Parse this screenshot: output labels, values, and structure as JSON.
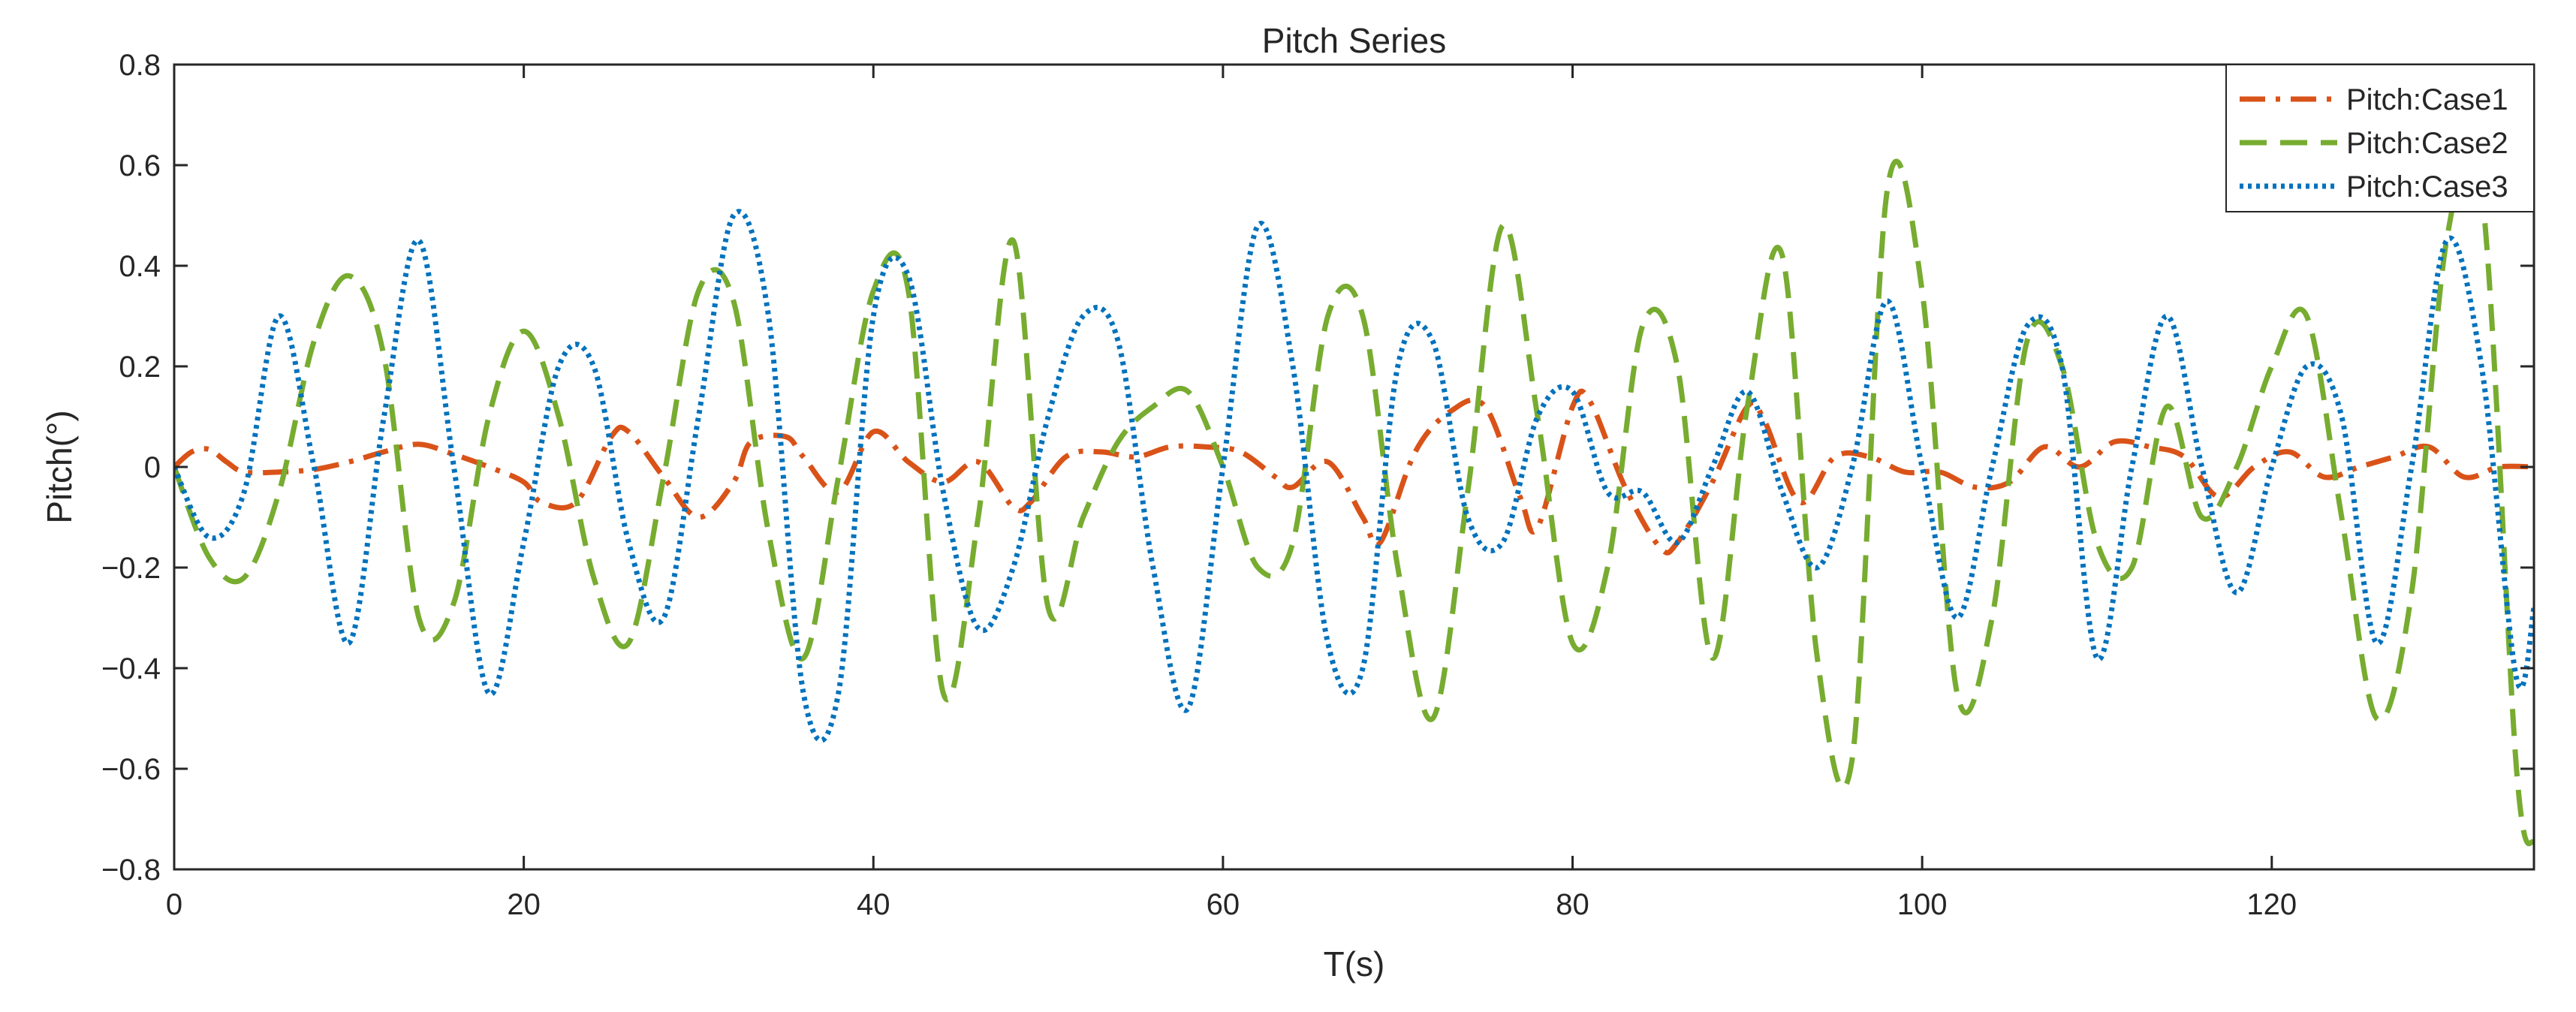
{
  "chart_data": {
    "type": "line",
    "title": "Pitch Series",
    "xlabel": "T(s)",
    "ylabel": "Pitch(°)",
    "xlim": [
      0,
      135
    ],
    "ylim": [
      -0.8,
      0.8
    ],
    "xticks": [
      0,
      20,
      40,
      60,
      80,
      100,
      120
    ],
    "yticks": [
      -0.8,
      -0.6,
      -0.4,
      -0.2,
      0,
      0.2,
      0.4,
      0.6,
      0.8
    ],
    "grid": false,
    "legend_position": "top-right",
    "series": [
      {
        "name": "Pitch:Case1",
        "color": "#D95319",
        "style": "dash-dot",
        "x": [
          0,
          1,
          2,
          3,
          4,
          6,
          8,
          10,
          12,
          14,
          16,
          18,
          20,
          21,
          23,
          25,
          26,
          28,
          30,
          32,
          33,
          35,
          36,
          38,
          40,
          42,
          44,
          46,
          48,
          49,
          51,
          53,
          55,
          57,
          59,
          61,
          63,
          64,
          66,
          68,
          69,
          71,
          73,
          75,
          77,
          78,
          80,
          81,
          83,
          85,
          86,
          88,
          90,
          91,
          93,
          95,
          97,
          99,
          101,
          103,
          105,
          107,
          109,
          111,
          113,
          115,
          117,
          119,
          121,
          123,
          125,
          127,
          129,
          131,
          133,
          135
        ],
        "y": [
          0.0,
          0.03,
          0.035,
          0.01,
          -0.01,
          -0.01,
          -0.005,
          0.01,
          0.03,
          0.045,
          0.025,
          0.0,
          -0.03,
          -0.07,
          -0.07,
          0.06,
          0.07,
          -0.02,
          -0.1,
          -0.03,
          0.05,
          0.06,
          0.02,
          -0.05,
          0.07,
          0.01,
          -0.03,
          0.01,
          -0.08,
          -0.07,
          0.02,
          0.03,
          0.02,
          0.04,
          0.04,
          0.03,
          -0.02,
          -0.04,
          0.01,
          -0.1,
          -0.15,
          0.03,
          0.11,
          0.12,
          -0.06,
          -0.12,
          0.12,
          0.13,
          -0.04,
          -0.16,
          -0.15,
          -0.03,
          0.12,
          0.09,
          -0.07,
          0.02,
          0.02,
          -0.01,
          -0.01,
          -0.04,
          -0.03,
          0.04,
          0.0,
          0.05,
          0.04,
          0.02,
          -0.06,
          0.0,
          0.03,
          -0.02,
          0.0,
          0.02,
          0.04,
          -0.02,
          0.0,
          0.0
        ]
      },
      {
        "name": "Pitch:Case2",
        "color": "#77AC30",
        "style": "dashed",
        "x": [
          0,
          2,
          4,
          6,
          8,
          10,
          12,
          14,
          16,
          18,
          20,
          22,
          24,
          26,
          28,
          30,
          32,
          34,
          36,
          38,
          40,
          42,
          44,
          46,
          48,
          50,
          52,
          54,
          56,
          58,
          60,
          62,
          64,
          66,
          68,
          70,
          72,
          74,
          76,
          78,
          80,
          82,
          84,
          86,
          88,
          90,
          92,
          94,
          96,
          98,
          100,
          102,
          104,
          106,
          108,
          110,
          112,
          114,
          116,
          118,
          120,
          122,
          124,
          126,
          128,
          130,
          132,
          134,
          135
        ],
        "y": [
          0.0,
          -0.18,
          -0.22,
          -0.05,
          0.25,
          0.38,
          0.22,
          -0.3,
          -0.27,
          0.1,
          0.27,
          0.1,
          -0.22,
          -0.35,
          -0.02,
          0.35,
          0.33,
          -0.13,
          -0.38,
          -0.02,
          0.35,
          0.35,
          -0.45,
          -0.1,
          0.45,
          -0.28,
          -0.1,
          0.05,
          0.12,
          0.15,
          0.0,
          -0.2,
          -0.15,
          0.3,
          0.3,
          -0.2,
          -0.5,
          -0.05,
          0.48,
          0.1,
          -0.35,
          -0.2,
          0.28,
          0.2,
          -0.38,
          0.12,
          0.42,
          -0.38,
          -0.58,
          0.55,
          0.35,
          -0.45,
          -0.3,
          0.25,
          0.2,
          -0.15,
          -0.2,
          0.12,
          -0.1,
          0.0,
          0.2,
          0.3,
          -0.1,
          -0.5,
          -0.25,
          0.45,
          0.55,
          -0.6,
          -0.75
        ]
      },
      {
        "name": "Pitch:Case3",
        "color": "#0072BD",
        "style": "dotted",
        "x": [
          0,
          2,
          4,
          6,
          8,
          10,
          12,
          14,
          16,
          18,
          20,
          22,
          24,
          26,
          28,
          30,
          32,
          34,
          36,
          38,
          40,
          42,
          44,
          46,
          48,
          50,
          52,
          54,
          56,
          58,
          60,
          62,
          64,
          66,
          68,
          70,
          72,
          74,
          76,
          78,
          80,
          82,
          84,
          86,
          88,
          90,
          92,
          94,
          96,
          98,
          100,
          102,
          104,
          106,
          108,
          110,
          112,
          114,
          116,
          118,
          120,
          122,
          124,
          126,
          128,
          130,
          132,
          134,
          135
        ],
        "y": [
          0.0,
          -0.14,
          -0.05,
          0.3,
          0.0,
          -0.35,
          0.1,
          0.45,
          0.0,
          -0.45,
          -0.15,
          0.2,
          0.2,
          -0.15,
          -0.3,
          0.1,
          0.5,
          0.3,
          -0.45,
          -0.45,
          0.3,
          0.38,
          -0.05,
          -0.32,
          -0.2,
          0.1,
          0.3,
          0.25,
          -0.2,
          -0.48,
          0.0,
          0.48,
          0.2,
          -0.35,
          -0.4,
          0.2,
          0.25,
          -0.1,
          -0.15,
          0.1,
          0.15,
          -0.05,
          -0.05,
          -0.15,
          0.0,
          0.15,
          -0.05,
          -0.2,
          0.0,
          0.33,
          0.0,
          -0.3,
          0.0,
          0.28,
          0.2,
          -0.38,
          0.0,
          0.3,
          0.0,
          -0.25,
          0.0,
          0.2,
          0.1,
          -0.35,
          0.0,
          0.45,
          0.2,
          -0.42,
          -0.28
        ]
      }
    ]
  }
}
